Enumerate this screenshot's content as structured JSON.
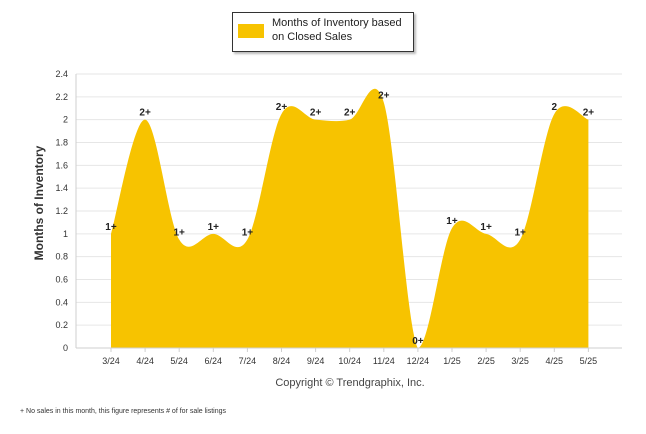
{
  "legend": {
    "label": "Months of Inventory based on Closed Sales"
  },
  "copyright": "Copyright © Trendgraphix, Inc.",
  "footnote": "+ No sales in this month, this figure represents # of for sale listings",
  "colors": {
    "area": "#f7c300",
    "grid": "#e6e6e6",
    "axis": "#cfcfcf",
    "text": "#333333"
  },
  "chart_data": {
    "type": "area",
    "title": "",
    "xlabel": "",
    "ylabel": "Months of Inventory",
    "ylim": [
      0,
      2.4
    ],
    "yticks": [
      "0",
      "0.2",
      "0.4",
      "0.6",
      "0.8",
      "1",
      "1.2",
      "1.4",
      "1.6",
      "1.8",
      "2",
      "2.2",
      "2.4"
    ],
    "categories": [
      "3/24",
      "4/24",
      "5/24",
      "6/24",
      "7/24",
      "8/24",
      "9/24",
      "10/24",
      "11/24",
      "12/24",
      "1/25",
      "2/25",
      "3/25",
      "4/25",
      "5/25"
    ],
    "series": [
      {
        "name": "Months of Inventory based on Closed Sales",
        "values": [
          1.0,
          2.0,
          0.95,
          1.0,
          0.95,
          2.05,
          2.0,
          2.0,
          2.15,
          0.0,
          1.05,
          1.0,
          0.95,
          2.05,
          2.0
        ],
        "labels": [
          "1+",
          "2+",
          "1+",
          "1+",
          "1+",
          "2+",
          "2+",
          "2+",
          "2+",
          "0+",
          "1+",
          "1+",
          "1+",
          "2",
          "2+"
        ]
      }
    ],
    "grid": true,
    "legend_position": "top-center"
  }
}
